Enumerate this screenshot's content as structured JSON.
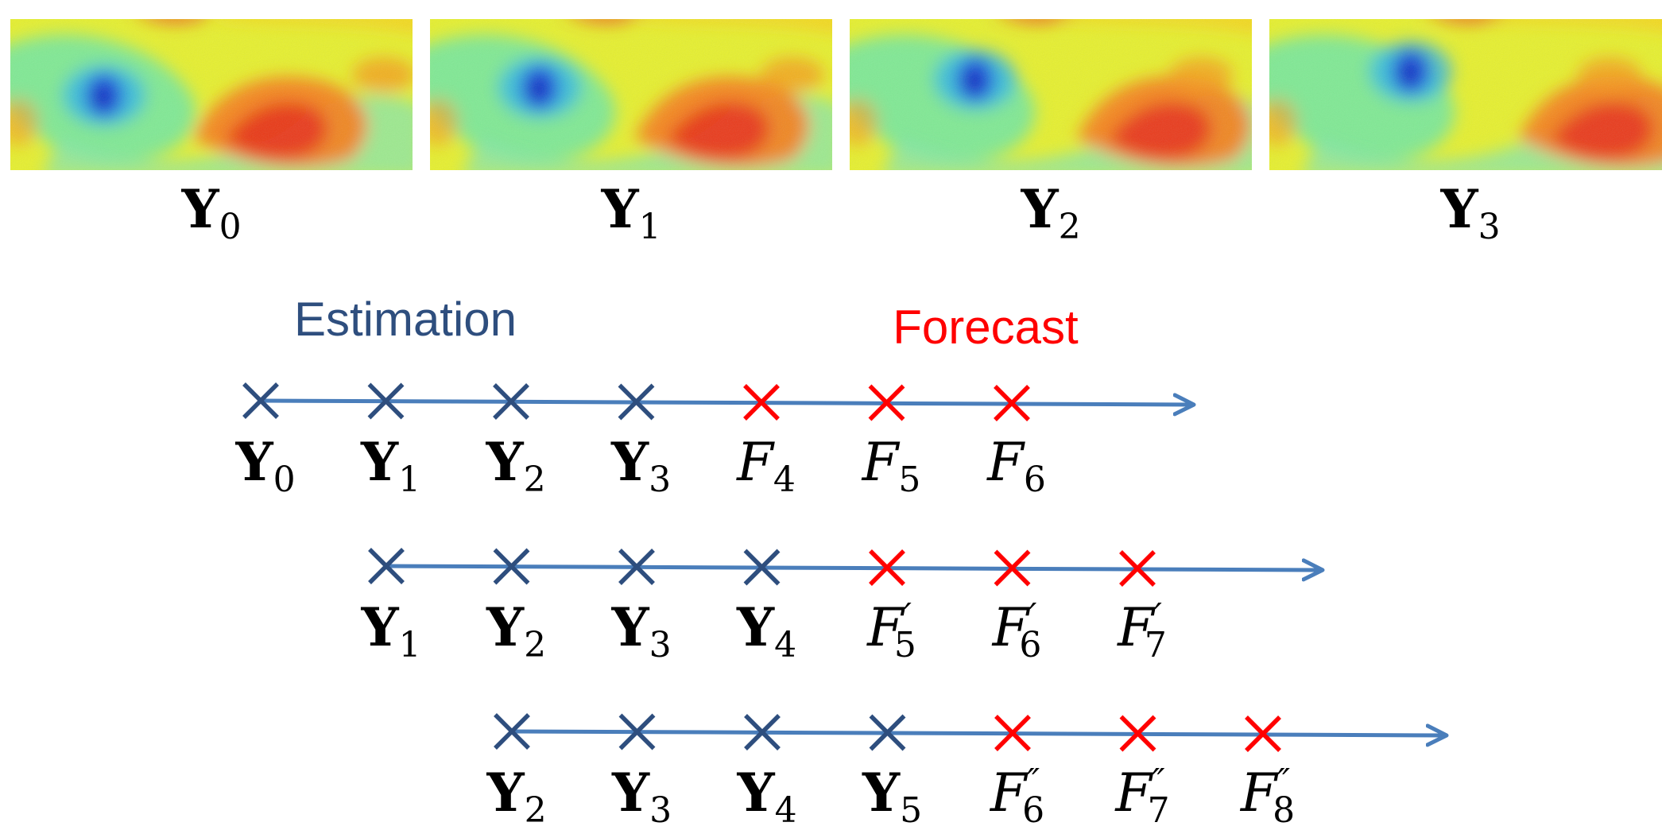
{
  "colors": {
    "estimation": "#2E4E7E",
    "forecast": "#FF0000",
    "timeline": "#4A7EBB"
  },
  "panels": [
    {
      "symbol": "Y",
      "subscript": "0"
    },
    {
      "symbol": "Y",
      "subscript": "1"
    },
    {
      "symbol": "Y",
      "subscript": "2"
    },
    {
      "symbol": "Y",
      "subscript": "3"
    }
  ],
  "legend": {
    "estimation": "Estimation",
    "forecast": "Forecast"
  },
  "timelines": [
    {
      "labels": [
        {
          "symbol": "Y",
          "subscript": "0",
          "kind": "estimation"
        },
        {
          "symbol": "Y",
          "subscript": "1",
          "kind": "estimation"
        },
        {
          "symbol": "Y",
          "subscript": "2",
          "kind": "estimation"
        },
        {
          "symbol": "Y",
          "subscript": "3",
          "kind": "estimation"
        },
        {
          "symbol": "F",
          "subscript": "4",
          "kind": "forecast"
        },
        {
          "symbol": "F",
          "subscript": "5",
          "kind": "forecast"
        },
        {
          "symbol": "F",
          "subscript": "6",
          "kind": "forecast"
        }
      ]
    },
    {
      "labels": [
        {
          "symbol": "Y",
          "subscript": "1",
          "kind": "estimation"
        },
        {
          "symbol": "Y",
          "subscript": "2",
          "kind": "estimation"
        },
        {
          "symbol": "Y",
          "subscript": "3",
          "kind": "estimation"
        },
        {
          "symbol": "Y",
          "subscript": "4",
          "kind": "estimation"
        },
        {
          "symbol": "F",
          "subscript": "5",
          "prime": "′",
          "kind": "forecast"
        },
        {
          "symbol": "F",
          "subscript": "6",
          "prime": "′",
          "kind": "forecast"
        },
        {
          "symbol": "F",
          "subscript": "7",
          "prime": "′",
          "kind": "forecast"
        }
      ]
    },
    {
      "labels": [
        {
          "symbol": "Y",
          "subscript": "2",
          "kind": "estimation"
        },
        {
          "symbol": "Y",
          "subscript": "3",
          "kind": "estimation"
        },
        {
          "symbol": "Y",
          "subscript": "4",
          "kind": "estimation"
        },
        {
          "symbol": "Y",
          "subscript": "5",
          "kind": "estimation"
        },
        {
          "symbol": "F",
          "subscript": "6",
          "prime": "″",
          "kind": "forecast"
        },
        {
          "symbol": "F",
          "subscript": "7",
          "prime": "″",
          "kind": "forecast"
        },
        {
          "symbol": "F",
          "subscript": "8",
          "prime": "″",
          "kind": "forecast"
        }
      ]
    }
  ]
}
